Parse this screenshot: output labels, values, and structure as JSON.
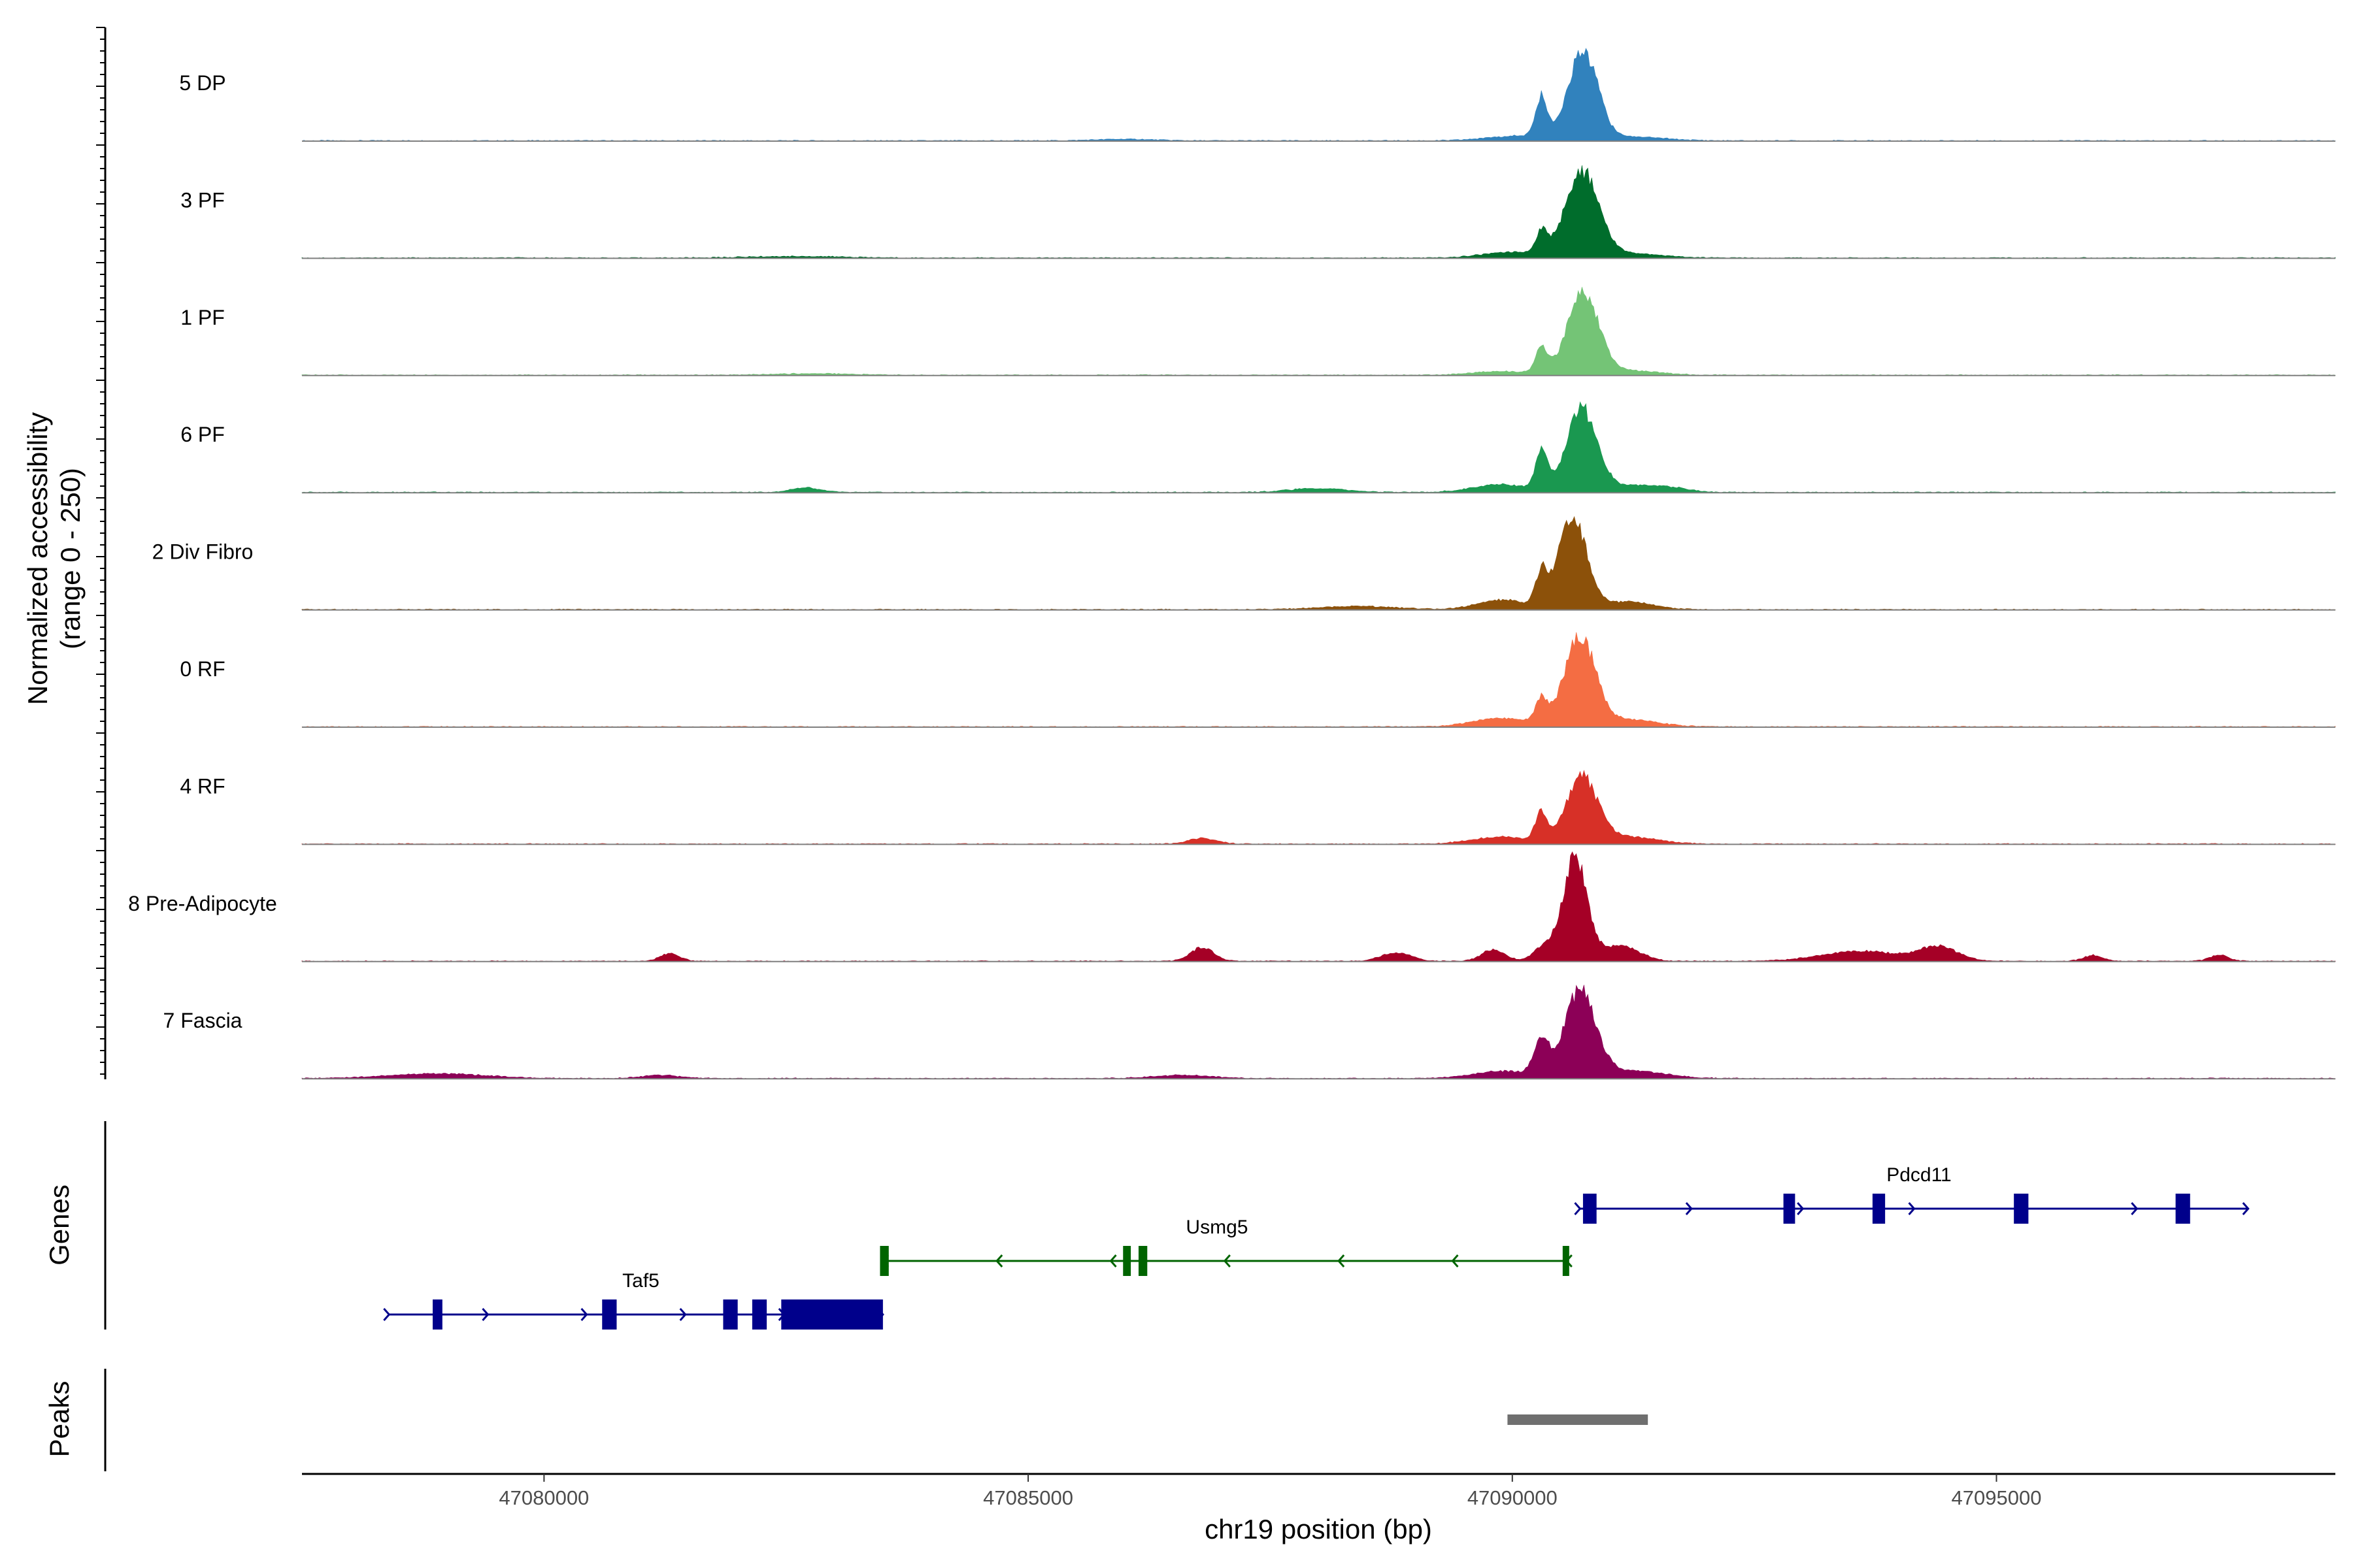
{
  "chart_data": {
    "type": "area",
    "title": "",
    "ylabel": "Normalized accessibility",
    "ylabel_range": "(range 0 - 250)",
    "xlabel": "chr19 position (bp)",
    "ylim": [
      0,
      250
    ],
    "xlim": [
      47077500,
      47098500
    ],
    "x_ticks": [
      47080000,
      47085000,
      47090000,
      47095000
    ],
    "x_tick_labels": [
      "47080000",
      "47085000",
      "47090000",
      "47095000"
    ],
    "series": [
      {
        "name": "5 DP",
        "color": "#3182bd",
        "peaks": [
          [
            47090300,
            105,
            60
          ],
          [
            47090730,
            225,
            150
          ],
          [
            47090030,
            12,
            300
          ],
          [
            47091200,
            10,
            350
          ],
          [
            47086000,
            4,
            300
          ]
        ]
      },
      {
        "name": "3 PF",
        "color": "#006d2c",
        "peaks": [
          [
            47090300,
            55,
            60
          ],
          [
            47090720,
            215,
            170
          ],
          [
            47090000,
            15,
            300
          ],
          [
            47091150,
            12,
            350
          ],
          [
            47082600,
            4,
            500
          ]
        ]
      },
      {
        "name": "1 PF",
        "color": "#74c476",
        "peaks": [
          [
            47090300,
            65,
            60
          ],
          [
            47090730,
            210,
            160
          ],
          [
            47089900,
            10,
            300
          ],
          [
            47091200,
            12,
            300
          ],
          [
            47082800,
            4,
            400
          ]
        ]
      },
      {
        "name": "6 PF",
        "color": "#1a9850",
        "peaks": [
          [
            47090300,
            95,
            60
          ],
          [
            47090720,
            210,
            160
          ],
          [
            47089900,
            20,
            300
          ],
          [
            47091300,
            18,
            250
          ],
          [
            47082700,
            12,
            150
          ],
          [
            47088000,
            10,
            300
          ],
          [
            47091700,
            8,
            150
          ]
        ]
      },
      {
        "name": "2 Div Fibro",
        "color": "#8c510a",
        "peaks": [
          [
            47090300,
            80,
            60
          ],
          [
            47090620,
            230,
            150
          ],
          [
            47089900,
            25,
            250
          ],
          [
            47091200,
            20,
            250
          ],
          [
            47088400,
            8,
            400
          ]
        ]
      },
      {
        "name": "0 RF",
        "color": "#f46d43",
        "peaks": [
          [
            47090300,
            60,
            60
          ],
          [
            47090700,
            225,
            160
          ],
          [
            47089900,
            22,
            300
          ],
          [
            47091200,
            18,
            300
          ]
        ]
      },
      {
        "name": "4 RF",
        "color": "#d73027",
        "peaks": [
          [
            47090300,
            75,
            60
          ],
          [
            47090720,
            165,
            160
          ],
          [
            47089900,
            18,
            300
          ],
          [
            47091200,
            18,
            300
          ],
          [
            47086800,
            14,
            150
          ]
        ]
      },
      {
        "name": "8 Pre-Adipocyte",
        "color": "#a50026",
        "peaks": [
          [
            47090650,
            265,
            120
          ],
          [
            47090350,
            40,
            120
          ],
          [
            47091100,
            40,
            200
          ],
          [
            47081300,
            20,
            100
          ],
          [
            47086800,
            35,
            120
          ],
          [
            47088800,
            22,
            150
          ],
          [
            47089800,
            30,
            120
          ],
          [
            47093600,
            25,
            400
          ],
          [
            47094400,
            35,
            200
          ],
          [
            47096000,
            15,
            100
          ],
          [
            47097300,
            15,
            100
          ]
        ]
      },
      {
        "name": "7 Fascia",
        "color": "#8c0057",
        "peaks": [
          [
            47090300,
            85,
            80
          ],
          [
            47090700,
            220,
            160
          ],
          [
            47089900,
            18,
            300
          ],
          [
            47091200,
            20,
            350
          ],
          [
            47078900,
            12,
            500
          ],
          [
            47081200,
            8,
            200
          ],
          [
            47086600,
            8,
            300
          ]
        ]
      }
    ],
    "genes": [
      {
        "name": "Taf5",
        "start": 47078400,
        "end": 47083500,
        "strand": "+",
        "color": "#00008b",
        "row": 2,
        "exons": [
          [
            47078850,
            47078950
          ],
          [
            47080600,
            47080750
          ],
          [
            47081850,
            47082000
          ],
          [
            47082150,
            47082300
          ],
          [
            47082450,
            47083500
          ]
        ]
      },
      {
        "name": "Usmg5",
        "start": 47083500,
        "end": 47090560,
        "strand": "-",
        "color": "#006400",
        "row": 1,
        "exons": [
          [
            47083470,
            47083560
          ],
          [
            47085980,
            47086060
          ],
          [
            47086140,
            47086230
          ],
          [
            47090520,
            47090580
          ]
        ]
      },
      {
        "name": "Pdcd11",
        "start": 47090700,
        "end": 47097600,
        "strand": "+",
        "color": "#00008b",
        "row": 0,
        "exons": [
          [
            47090730,
            47090870
          ],
          [
            47092800,
            47092920
          ],
          [
            47093720,
            47093850
          ],
          [
            47095180,
            47095330
          ],
          [
            47096850,
            47097000
          ]
        ]
      }
    ],
    "peaks": [
      {
        "start": 47089950,
        "end": 47091400
      }
    ],
    "panel_labels": {
      "genes": "Genes",
      "peaks": "Peaks"
    }
  }
}
